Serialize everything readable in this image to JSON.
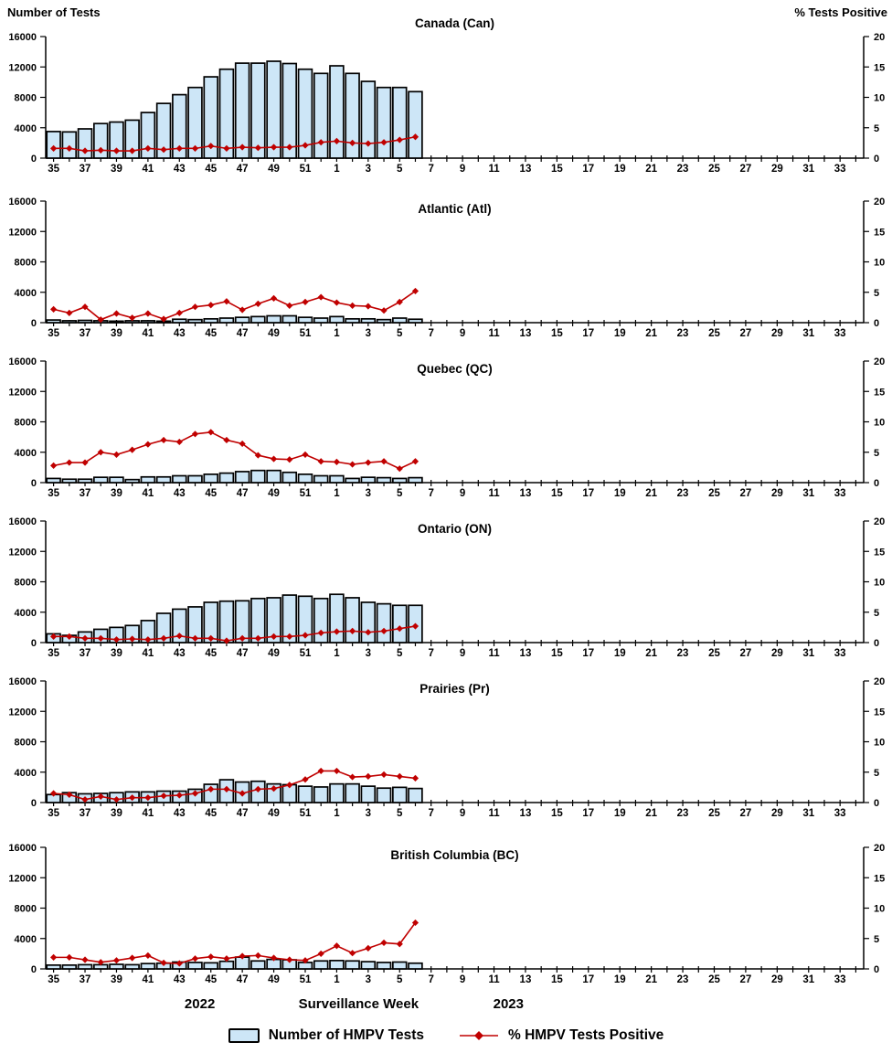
{
  "header": {
    "left_axis_title": "Number of Tests",
    "right_axis_title": "% Tests Positive"
  },
  "footer": {
    "year_left": "2022",
    "x_axis_title": "Surveillance Week",
    "year_right": "2023"
  },
  "legend": {
    "bars_label": "Number of HMPV Tests",
    "line_label": "% HMPV Tests Positive"
  },
  "colors": {
    "bar_fill": "#CDE6F7",
    "bar_stroke": "#000000",
    "line": "#C00000",
    "axis": "#000000"
  },
  "chart_data": {
    "type": "bar+line",
    "panels_layout": "6 stacked subplots, shared x axis range",
    "x_weeks": [
      35,
      36,
      37,
      38,
      39,
      40,
      41,
      42,
      43,
      44,
      45,
      46,
      47,
      48,
      49,
      50,
      51,
      52,
      1,
      2,
      3,
      4,
      5,
      6,
      7,
      8,
      9,
      10,
      11,
      12,
      13,
      14,
      15,
      16,
      17,
      18,
      19,
      20,
      21,
      22,
      23,
      24,
      25,
      26,
      27,
      28,
      29,
      30,
      31,
      32,
      33,
      34
    ],
    "x_tick_labels_shown": [
      35,
      37,
      39,
      41,
      43,
      45,
      47,
      49,
      51,
      1,
      3,
      5,
      7,
      9,
      11,
      13,
      15,
      17,
      19,
      21,
      23,
      25,
      27,
      29,
      31,
      33
    ],
    "y_left": {
      "label": "Number of Tests",
      "min": 0,
      "max": 16000,
      "ticks": [
        0,
        4000,
        8000,
        12000,
        16000
      ]
    },
    "y_right": {
      "label": "% Tests Positive",
      "min": 0,
      "max": 20,
      "ticks": [
        0,
        5,
        10,
        15,
        20
      ]
    },
    "data_weeks": [
      35,
      36,
      37,
      38,
      39,
      40,
      41,
      42,
      43,
      44,
      45,
      46,
      47,
      48,
      49,
      50,
      51,
      52,
      1,
      2,
      3,
      4,
      5,
      6
    ],
    "panels": [
      {
        "title": "Canada (Can)",
        "tests": [
          3500,
          3450,
          3850,
          4550,
          4750,
          5000,
          6000,
          7200,
          8350,
          9300,
          10700,
          11700,
          12500,
          12500,
          12750,
          12450,
          11700,
          11150,
          12150,
          11150,
          10100,
          9300,
          9300,
          8750
        ],
        "pct_positive": [
          1.6,
          1.6,
          1.2,
          1.3,
          1.2,
          1.2,
          1.6,
          1.4,
          1.6,
          1.6,
          2.0,
          1.6,
          1.8,
          1.7,
          1.8,
          1.8,
          2.1,
          2.6,
          2.8,
          2.5,
          2.4,
          2.6,
          3.0,
          3.5
        ]
      },
      {
        "title": "Atlantic (Atl)",
        "tests": [
          350,
          250,
          300,
          250,
          200,
          250,
          250,
          200,
          450,
          400,
          500,
          600,
          700,
          800,
          900,
          900,
          700,
          600,
          800,
          500,
          500,
          400,
          600,
          450
        ],
        "pct_positive": [
          2.2,
          1.6,
          2.6,
          0.5,
          1.5,
          0.8,
          1.5,
          0.6,
          1.6,
          2.6,
          2.9,
          3.5,
          2.1,
          3.1,
          4.0,
          2.8,
          3.4,
          4.2,
          3.3,
          2.8,
          2.7,
          2.0,
          3.4,
          5.2
        ]
      },
      {
        "title": "Quebec (QC)",
        "tests": [
          550,
          450,
          450,
          700,
          700,
          400,
          750,
          750,
          900,
          900,
          1100,
          1250,
          1450,
          1600,
          1600,
          1350,
          1100,
          900,
          900,
          550,
          700,
          650,
          550,
          650
        ],
        "pct_positive": [
          2.8,
          3.3,
          3.3,
          5.0,
          4.6,
          5.4,
          6.3,
          7.0,
          6.7,
          8.0,
          8.3,
          7.0,
          6.4,
          4.5,
          3.9,
          3.8,
          4.6,
          3.5,
          3.4,
          3.0,
          3.3,
          3.5,
          2.3,
          3.5
        ]
      },
      {
        "title": "Ontario (ON)",
        "tests": [
          1150,
          950,
          1400,
          1750,
          2000,
          2250,
          2900,
          3850,
          4400,
          4700,
          5300,
          5450,
          5500,
          5800,
          5900,
          6250,
          6100,
          5800,
          6350,
          5900,
          5300,
          5100,
          4900,
          4900
        ],
        "pct_positive": [
          1.0,
          1.0,
          0.7,
          0.7,
          0.5,
          0.6,
          0.5,
          0.7,
          1.1,
          0.7,
          0.7,
          0.3,
          0.7,
          0.7,
          1.0,
          1.0,
          1.2,
          1.6,
          1.8,
          1.9,
          1.7,
          1.9,
          2.3,
          2.7
        ]
      },
      {
        "title": "Prairies (Pr)",
        "tests": [
          1050,
          1300,
          1150,
          1200,
          1300,
          1400,
          1400,
          1500,
          1500,
          1750,
          2400,
          3000,
          2700,
          2800,
          2450,
          2350,
          2150,
          2050,
          2450,
          2450,
          2150,
          1900,
          2000,
          1850
        ],
        "pct_positive": [
          1.5,
          1.3,
          0.5,
          1.0,
          0.5,
          0.8,
          0.8,
          1.1,
          1.2,
          1.5,
          2.2,
          2.2,
          1.5,
          2.2,
          2.3,
          2.9,
          3.8,
          5.2,
          5.2,
          4.2,
          4.3,
          4.6,
          4.3,
          4.0
        ]
      },
      {
        "title": "British Columbia (BC)",
        "tests": [
          500,
          500,
          550,
          550,
          600,
          550,
          700,
          750,
          900,
          850,
          800,
          1000,
          1550,
          1050,
          1250,
          1200,
          850,
          1050,
          1100,
          1050,
          950,
          850,
          900,
          750
        ],
        "pct_positive": [
          1.9,
          1.9,
          1.5,
          1.1,
          1.4,
          1.8,
          2.2,
          1.0,
          0.9,
          1.7,
          2.0,
          1.7,
          2.1,
          2.2,
          1.8,
          1.5,
          1.4,
          2.5,
          3.8,
          2.6,
          3.4,
          4.3,
          4.1,
          7.6
        ]
      }
    ]
  }
}
